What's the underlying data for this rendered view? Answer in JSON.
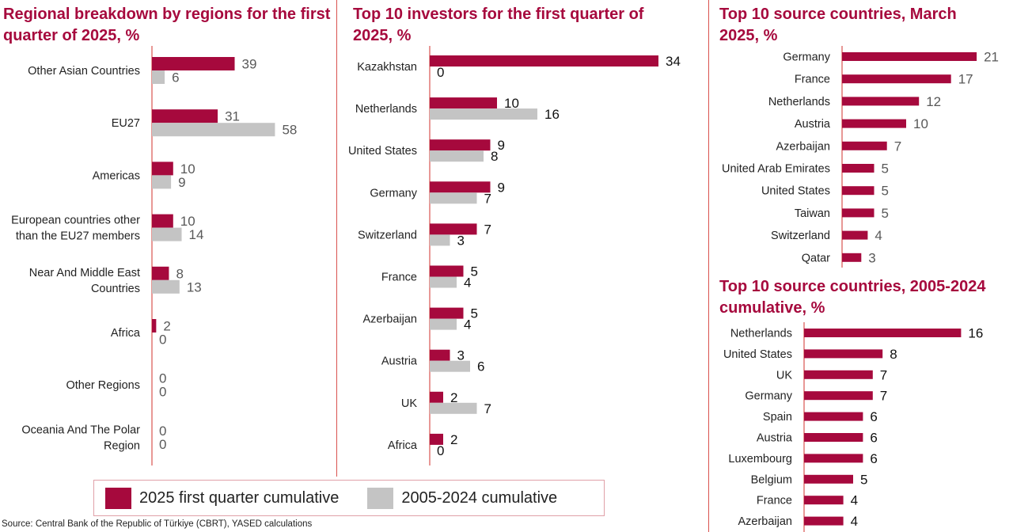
{
  "colors": {
    "primary": "#a6093d",
    "secondary": "#c4c4c4",
    "title": "#a6093d",
    "axis": "#d9534f"
  },
  "legend": {
    "series1": "2025 first quarter cumulative",
    "series2": "2005-2024 cumulative"
  },
  "source": "Source: Central Bank of the Republic of Türkiye (CBRT), YASED calculations",
  "chart_data": [
    {
      "id": "regional",
      "type": "bar",
      "orientation": "horizontal",
      "title": "Regional breakdown by regions for the first quarter of 2025, %",
      "title_lines": [
        "Regional breakdown by regions for the first",
        "quarter of 2025, %"
      ],
      "categories": [
        "Other Asian Countries",
        "EU27",
        "Americas",
        "European countries other than the EU27 members",
        "Near And Middle East Countries",
        "Africa",
        "Other Regions",
        "Oceania And The Polar Region"
      ],
      "category_lines": [
        [
          "Other Asian Countries"
        ],
        [
          "EU27"
        ],
        [
          "Americas"
        ],
        [
          "European countries other",
          "than the EU27 members"
        ],
        [
          "Near And Middle East",
          "Countries"
        ],
        [
          "Africa"
        ],
        [
          "Other Regions"
        ],
        [
          "Oceania And The Polar",
          "Region"
        ]
      ],
      "series": [
        {
          "name": "2025 first quarter cumulative",
          "values": [
            39,
            31,
            10,
            10,
            8,
            2,
            0,
            0
          ]
        },
        {
          "name": "2005-2024 cumulative",
          "values": [
            6,
            58,
            9,
            14,
            13,
            0,
            0,
            0
          ]
        }
      ],
      "xlim": [
        0,
        60
      ]
    },
    {
      "id": "investors",
      "type": "bar",
      "orientation": "horizontal",
      "title": "Top 10 investors for the first quarter of 2025, %",
      "title_lines": [
        "Top 10 investors for the first quarter of",
        "2025, %"
      ],
      "categories": [
        "Kazakhstan",
        "Netherlands",
        "United States",
        "Germany",
        "Switzerland",
        "France",
        "Azerbaijan",
        "Austria",
        "UK",
        "Africa"
      ],
      "category_lines": [
        [
          "Kazakhstan"
        ],
        [
          "Netherlands"
        ],
        [
          "United States"
        ],
        [
          "Germany"
        ],
        [
          "Switzerland"
        ],
        [
          "France"
        ],
        [
          "Azerbaijan"
        ],
        [
          "Austria"
        ],
        [
          "UK"
        ],
        [
          "Africa"
        ]
      ],
      "series": [
        {
          "name": "2025 first quarter cumulative",
          "values": [
            34,
            10,
            9,
            9,
            7,
            5,
            5,
            3,
            2,
            2
          ]
        },
        {
          "name": "2005-2024 cumulative",
          "values": [
            0,
            16,
            8,
            7,
            3,
            4,
            4,
            6,
            7,
            0
          ]
        }
      ],
      "xlim": [
        0,
        36
      ]
    },
    {
      "id": "march",
      "type": "bar",
      "orientation": "horizontal",
      "title": "Top 10 source countries, March 2025, %",
      "title_lines": [
        "Top 10 source countries, March",
        "2025, %"
      ],
      "categories": [
        "Germany",
        "France",
        "Netherlands",
        "Austria",
        "Azerbaijan",
        "United Arab Emirates",
        "United States",
        "Taiwan",
        "Switzerland",
        "Qatar"
      ],
      "category_lines": [
        [
          "Germany"
        ],
        [
          "France"
        ],
        [
          "Netherlands"
        ],
        [
          "Austria"
        ],
        [
          "Azerbaijan"
        ],
        [
          "United Arab Emirates"
        ],
        [
          "United States"
        ],
        [
          "Taiwan"
        ],
        [
          "Switzerland"
        ],
        [
          "Qatar"
        ]
      ],
      "series": [
        {
          "name": "March 2025",
          "values": [
            21,
            17,
            12,
            10,
            7,
            5,
            5,
            5,
            4,
            3
          ]
        }
      ],
      "xlim": [
        0,
        22
      ]
    },
    {
      "id": "cumulative",
      "type": "bar",
      "orientation": "horizontal",
      "title": "Top 10 source countries, 2005-2024 cumulative, %",
      "title_lines": [
        "Top 10 source countries, 2005-2024",
        "cumulative, %"
      ],
      "categories": [
        "Netherlands",
        "United States",
        "UK",
        "Germany",
        "Spain",
        "Austria",
        "Luxembourg",
        "Belgium",
        "France",
        "Azerbaijan"
      ],
      "category_lines": [
        [
          "Netherlands"
        ],
        [
          "United States"
        ],
        [
          "UK"
        ],
        [
          "Germany"
        ],
        [
          "Spain"
        ],
        [
          "Austria"
        ],
        [
          "Luxembourg"
        ],
        [
          "Belgium"
        ],
        [
          "France"
        ],
        [
          "Azerbaijan"
        ]
      ],
      "series": [
        {
          "name": "2005-2024 cumulative",
          "values": [
            16,
            8,
            7,
            7,
            6,
            6,
            6,
            5,
            4,
            4
          ]
        }
      ],
      "xlim": [
        0,
        17
      ]
    }
  ]
}
